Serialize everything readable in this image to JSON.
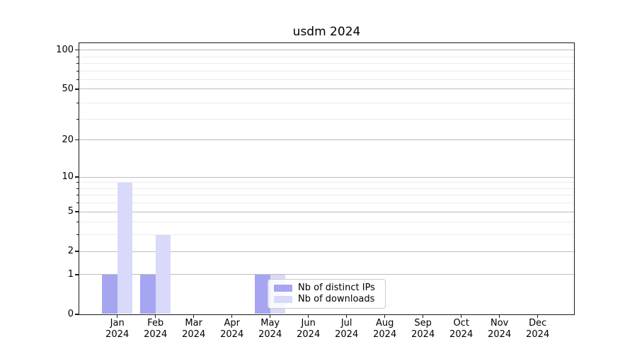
{
  "chart_data": {
    "type": "bar",
    "title": "usdm 2024",
    "x_year": "2024",
    "categories": [
      "Jan",
      "Feb",
      "Mar",
      "Apr",
      "May",
      "Jun",
      "Jul",
      "Aug",
      "Sep",
      "Oct",
      "Nov",
      "Dec"
    ],
    "series": [
      {
        "name": "Nb of distinct IPs",
        "color": "#a5a5f2",
        "values": [
          1,
          1,
          0,
          0,
          1,
          0,
          0,
          0,
          0,
          0,
          0,
          0
        ]
      },
      {
        "name": "Nb of downloads",
        "color": "#d9d9fa",
        "values": [
          9,
          3,
          0,
          0,
          1,
          0,
          0,
          0,
          0,
          0,
          0,
          0
        ]
      }
    ],
    "yscale": "log1p",
    "ylim": [
      0,
      109
    ],
    "y_ticks": [
      0,
      1,
      2,
      5,
      10,
      20,
      50,
      100
    ],
    "y_minor_ticks": [
      3,
      4,
      6,
      7,
      8,
      9,
      29,
      39,
      59,
      69,
      79,
      89
    ],
    "grid": true,
    "legend_position": "lower center",
    "colors": {
      "major_grid": "#bdbdbd",
      "minor_grid": "#ececec",
      "axis": "#1a1a1a",
      "text": "#000000",
      "legend_border": "#cccccc"
    }
  }
}
